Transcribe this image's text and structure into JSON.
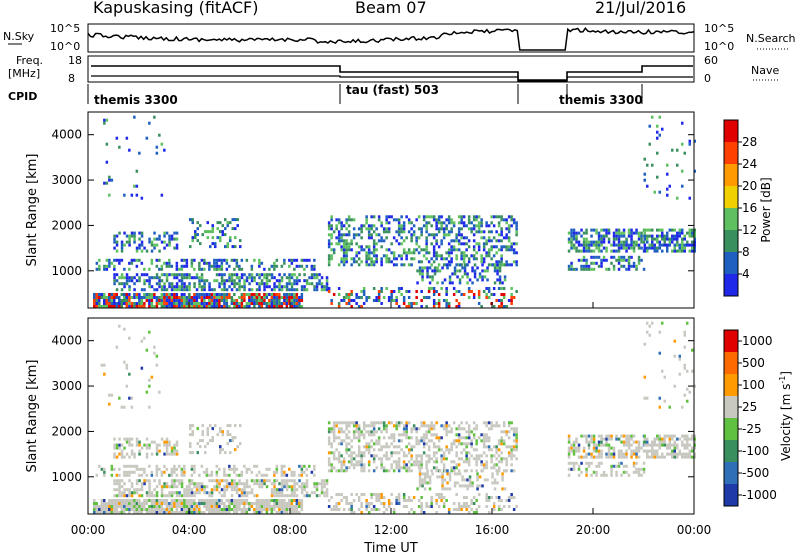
{
  "header": {
    "site": "Kapuskasing (fitACF)",
    "beam": "Beam 07",
    "date": "21/Jul/2016"
  },
  "strips": {
    "nsky_label": "N.Sky",
    "nsky_ticks": [
      "10^5",
      "10^0"
    ],
    "nsearch_label": "N.Search",
    "freq_label_line1": "Freq.",
    "freq_label_line2": "[MHz]",
    "freq_ticks": [
      "18",
      "8"
    ],
    "nave_label": "Nave",
    "nave_ticks": [
      "60",
      "0"
    ],
    "cpid_label": "CPID",
    "cpid_segments": [
      {
        "start_hour": 0,
        "end_hour": 9.9,
        "label": "themis 3300"
      },
      {
        "start_hour": 9.9,
        "end_hour": 17.0,
        "label": "tau (fast) 503"
      },
      {
        "start_hour": 19.0,
        "end_hour": 22.0,
        "label": "themis 3300"
      }
    ]
  },
  "chart_data": [
    {
      "type": "heatmap",
      "panel": "power",
      "ylabel": "Slant Range [km]",
      "ylim": [
        180,
        4500
      ],
      "yticks": [
        1000,
        2000,
        3000,
        4000
      ],
      "xlim": [
        0,
        24
      ],
      "colorbar": {
        "label": "Power [dB]",
        "ticks": [
          "4",
          "8",
          "12",
          "16",
          "20",
          "24",
          "28"
        ],
        "colors": [
          "#1f28e8",
          "#1f5fc0",
          "#3a8f5f",
          "#5fc05f",
          "#f0d000",
          "#ff9a00",
          "#ff4000",
          "#e00000"
        ]
      }
    },
    {
      "type": "heatmap",
      "panel": "velocity",
      "ylabel": "Slant Range [km]",
      "ylim": [
        180,
        4500
      ],
      "yticks": [
        1000,
        2000,
        3000,
        4000
      ],
      "xlim": [
        0,
        24
      ],
      "xticks": [
        "00:00",
        "04:00",
        "08:00",
        "12:00",
        "16:00",
        "20:00",
        "00:00"
      ],
      "xlabel": "Time UT",
      "colorbar": {
        "label": "Velocity [m s^-1]",
        "ticks": [
          "1000",
          "500",
          "100",
          "25",
          "-25",
          "-100",
          "-500",
          "-1000"
        ],
        "colors": [
          "#1f3aa8",
          "#2f6fb8",
          "#3a8f5f",
          "#60c040",
          "#c8c8c0",
          "#ff9a00",
          "#ff6a00",
          "#e00000"
        ]
      }
    }
  ]
}
